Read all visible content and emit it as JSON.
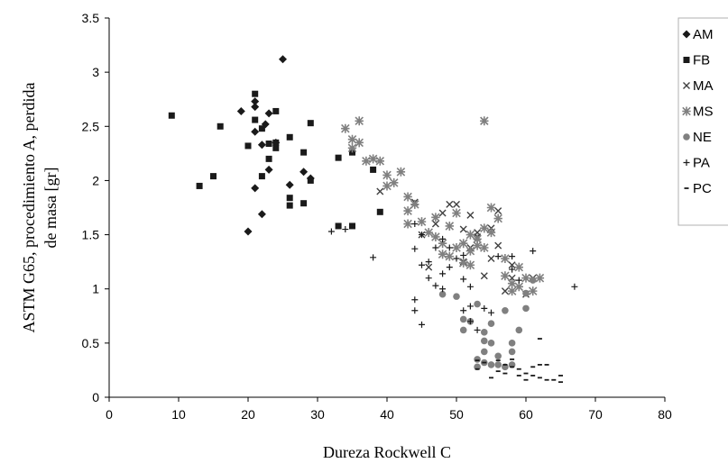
{
  "chart_data": {
    "type": "scatter",
    "title": "",
    "xlabel": "Dureza Rockwell C",
    "ylabel": "ASTM G65, procedimiento A, perdida de masa [gr]",
    "xlim": [
      0,
      80
    ],
    "ylim": [
      0,
      3.5
    ],
    "x_ticks": [
      "0",
      "10",
      "20",
      "30",
      "40",
      "50",
      "60",
      "70",
      "80"
    ],
    "y_ticks": [
      "0",
      "0.5",
      "1",
      "1.5",
      "2",
      "2.5",
      "3",
      "3.5"
    ],
    "grid": false,
    "legend_position": "right",
    "series": [
      {
        "name": "AM",
        "marker": "diamond",
        "color": "#1a1a1a",
        "points": [
          [
            25,
            3.12
          ],
          [
            21,
            2.73
          ],
          [
            19,
            2.64
          ],
          [
            21,
            2.68
          ],
          [
            22.5,
            2.52
          ],
          [
            24,
            2.35
          ],
          [
            23,
            2.62
          ],
          [
            21,
            2.45
          ],
          [
            22,
            2.33
          ],
          [
            23,
            2.1
          ],
          [
            28,
            2.08
          ],
          [
            21,
            1.93
          ],
          [
            26,
            1.96
          ],
          [
            22,
            1.69
          ],
          [
            20,
            1.53
          ],
          [
            29,
            2.02
          ]
        ]
      },
      {
        "name": "FB",
        "marker": "square",
        "color": "#1a1a1a",
        "points": [
          [
            9,
            2.6
          ],
          [
            13,
            1.95
          ],
          [
            15,
            2.04
          ],
          [
            16,
            2.5
          ],
          [
            20,
            2.32
          ],
          [
            21,
            2.56
          ],
          [
            21,
            2.8
          ],
          [
            22,
            2.04
          ],
          [
            22,
            2.48
          ],
          [
            23,
            2.34
          ],
          [
            23,
            2.2
          ],
          [
            24,
            2.64
          ],
          [
            24,
            2.35
          ],
          [
            26,
            2.4
          ],
          [
            26,
            1.84
          ],
          [
            26,
            1.77
          ],
          [
            28,
            1.79
          ],
          [
            28,
            2.26
          ],
          [
            29,
            2.53
          ],
          [
            33,
            2.21
          ],
          [
            33,
            1.58
          ],
          [
            35,
            2.26
          ],
          [
            35,
            1.58
          ],
          [
            38,
            2.1
          ],
          [
            39,
            1.71
          ],
          [
            24,
            2.3
          ],
          [
            29,
            2.0
          ]
        ]
      },
      {
        "name": "MA",
        "marker": "x",
        "color": "#404040",
        "points": [
          [
            39,
            1.9
          ],
          [
            44,
            1.8
          ],
          [
            45,
            1.5
          ],
          [
            46,
            1.2
          ],
          [
            47,
            1.6
          ],
          [
            48,
            1.7
          ],
          [
            49,
            1.78
          ],
          [
            50,
            1.78
          ],
          [
            51,
            1.55
          ],
          [
            51,
            1.25
          ],
          [
            52,
            1.38
          ],
          [
            53,
            1.52
          ],
          [
            54,
            1.12
          ],
          [
            54,
            2.55
          ],
          [
            55,
            1.28
          ],
          [
            56,
            1.4
          ],
          [
            58,
            1.1
          ],
          [
            58,
            1.22
          ],
          [
            60,
            0.95
          ],
          [
            61,
            1.1
          ],
          [
            57,
            0.98
          ],
          [
            52,
            1.68
          ],
          [
            53,
            1.48
          ],
          [
            55,
            1.56
          ],
          [
            56,
            1.72
          ]
        ]
      },
      {
        "name": "MS",
        "marker": "asterisk",
        "color": "#808080",
        "points": [
          [
            34,
            2.48
          ],
          [
            35,
            2.38
          ],
          [
            35,
            2.3
          ],
          [
            36,
            2.55
          ],
          [
            36,
            2.35
          ],
          [
            37,
            2.18
          ],
          [
            38,
            2.2
          ],
          [
            39,
            2.18
          ],
          [
            40,
            2.05
          ],
          [
            40,
            1.95
          ],
          [
            41,
            1.98
          ],
          [
            42,
            2.08
          ],
          [
            43,
            1.85
          ],
          [
            43,
            1.72
          ],
          [
            44,
            1.78
          ],
          [
            45,
            1.62
          ],
          [
            46,
            1.52
          ],
          [
            47,
            1.48
          ],
          [
            47,
            1.66
          ],
          [
            48,
            1.42
          ],
          [
            49,
            1.3
          ],
          [
            49,
            1.58
          ],
          [
            50,
            1.38
          ],
          [
            50,
            1.7
          ],
          [
            51,
            1.42
          ],
          [
            51,
            1.24
          ],
          [
            52,
            1.5
          ],
          [
            52,
            1.35
          ],
          [
            53,
            1.46
          ],
          [
            53,
            1.4
          ],
          [
            54,
            1.38
          ],
          [
            54,
            1.56
          ],
          [
            55,
            1.75
          ],
          [
            55,
            1.52
          ],
          [
            56,
            1.65
          ],
          [
            57,
            1.12
          ],
          [
            57,
            1.28
          ],
          [
            58,
            1.05
          ],
          [
            58,
            0.98
          ],
          [
            59,
            1.02
          ],
          [
            59,
            1.2
          ],
          [
            60,
            1.1
          ],
          [
            61,
            0.98
          ],
          [
            62,
            1.1
          ],
          [
            54,
            2.55
          ],
          [
            43,
            1.6
          ],
          [
            52,
            1.22
          ],
          [
            48,
            1.32
          ]
        ]
      },
      {
        "name": "NE",
        "marker": "circle",
        "color": "#808080",
        "points": [
          [
            48,
            0.95
          ],
          [
            50,
            0.93
          ],
          [
            51,
            0.72
          ],
          [
            51,
            0.62
          ],
          [
            52,
            0.7
          ],
          [
            53,
            0.86
          ],
          [
            53,
            0.35
          ],
          [
            54,
            0.6
          ],
          [
            54,
            0.52
          ],
          [
            54,
            0.42
          ],
          [
            55,
            0.68
          ],
          [
            55,
            0.5
          ],
          [
            55,
            0.3
          ],
          [
            56,
            0.38
          ],
          [
            57,
            0.8
          ],
          [
            57,
            0.28
          ],
          [
            58,
            0.42
          ],
          [
            58,
            0.3
          ],
          [
            58,
            0.5
          ],
          [
            59,
            0.62
          ],
          [
            60,
            0.82
          ],
          [
            60,
            0.96
          ],
          [
            61,
            1.08
          ],
          [
            54,
            0.32
          ],
          [
            56,
            0.3
          ],
          [
            53,
            0.28
          ]
        ]
      },
      {
        "name": "PA",
        "marker": "plus",
        "color": "#1a1a1a",
        "points": [
          [
            32,
            1.53
          ],
          [
            34,
            1.55
          ],
          [
            38,
            1.29
          ],
          [
            44,
            1.6
          ],
          [
            44,
            1.37
          ],
          [
            45,
            1.5
          ],
          [
            45,
            1.22
          ],
          [
            46,
            1.25
          ],
          [
            46,
            1.1
          ],
          [
            47,
            1.38
          ],
          [
            48,
            1.14
          ],
          [
            48,
            1.46
          ],
          [
            49,
            1.2
          ],
          [
            49,
            1.38
          ],
          [
            50,
            1.28
          ],
          [
            51,
            1.09
          ],
          [
            51,
            1.31
          ],
          [
            52,
            1.02
          ],
          [
            44,
            0.9
          ],
          [
            44,
            0.8
          ],
          [
            45,
            0.67
          ],
          [
            47,
            1.03
          ],
          [
            48,
            1.0
          ],
          [
            51,
            0.8
          ],
          [
            52,
            0.84
          ],
          [
            53,
            0.62
          ],
          [
            54,
            0.82
          ],
          [
            55,
            0.78
          ],
          [
            56,
            1.3
          ],
          [
            58,
            1.3
          ],
          [
            58,
            1.18
          ],
          [
            59,
            1.08
          ],
          [
            61,
            1.35
          ],
          [
            67,
            1.02
          ],
          [
            52,
            0.7
          ]
        ]
      },
      {
        "name": "PC",
        "marker": "dash",
        "color": "#1a1a1a",
        "points": [
          [
            53,
            0.26
          ],
          [
            54,
            0.32
          ],
          [
            55,
            0.18
          ],
          [
            56,
            0.24
          ],
          [
            57,
            0.3
          ],
          [
            57,
            0.22
          ],
          [
            58,
            0.28
          ],
          [
            58,
            0.35
          ],
          [
            59,
            0.26
          ],
          [
            59,
            0.2
          ],
          [
            60,
            0.22
          ],
          [
            60,
            0.16
          ],
          [
            61,
            0.28
          ],
          [
            61,
            0.2
          ],
          [
            62,
            0.3
          ],
          [
            62,
            0.18
          ],
          [
            62,
            0.54
          ],
          [
            63,
            0.16
          ],
          [
            63,
            0.3
          ],
          [
            64,
            0.16
          ],
          [
            65,
            0.14
          ],
          [
            65,
            0.2
          ],
          [
            53,
            0.34
          ],
          [
            56,
            0.34
          ]
        ]
      }
    ]
  }
}
